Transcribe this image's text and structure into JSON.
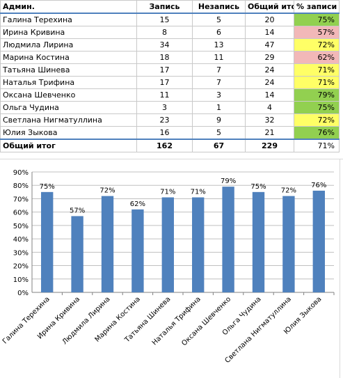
{
  "table": {
    "headers": [
      "Админ.",
      "Запись",
      "Незапись",
      "Общий итог",
      "% записи"
    ],
    "rows": [
      {
        "name": "Галина Терехина",
        "zapis": "15",
        "nezapis": "5",
        "itog": "20",
        "pct": "75%",
        "color": "#92d050"
      },
      {
        "name": "Ирина Кривина",
        "zapis": "8",
        "nezapis": "6",
        "itog": "14",
        "pct": "57%",
        "color": "#f2b8b8"
      },
      {
        "name": "Людмила Лирина",
        "zapis": "34",
        "nezapis": "13",
        "itog": "47",
        "pct": "72%",
        "color": "#ffff66"
      },
      {
        "name": "Марина Костина",
        "zapis": "18",
        "nezapis": "11",
        "itog": "29",
        "pct": "62%",
        "color": "#f2b8b8"
      },
      {
        "name": "Татьяна Шинева",
        "zapis": "17",
        "nezapis": "7",
        "itog": "24",
        "pct": "71%",
        "color": "#ffff66"
      },
      {
        "name": "Наталья Трифина",
        "zapis": "17",
        "nezapis": "7",
        "itog": "24",
        "pct": "71%",
        "color": "#ffff66"
      },
      {
        "name": "Оксана Шевченко",
        "zapis": "11",
        "nezapis": "3",
        "itog": "14",
        "pct": "79%",
        "color": "#92d050"
      },
      {
        "name": "Ольга Чудина",
        "zapis": "3",
        "nezapis": "1",
        "itog": "4",
        "pct": "75%",
        "color": "#92d050"
      },
      {
        "name": "Светлана Нигматуллина",
        "zapis": "23",
        "nezapis": "9",
        "itog": "32",
        "pct": "72%",
        "color": "#ffff66"
      },
      {
        "name": "Юлия Зыкова",
        "zapis": "16",
        "nezapis": "5",
        "itog": "21",
        "pct": "76%",
        "color": "#92d050"
      }
    ],
    "total": {
      "name": "Общий итог",
      "zapis": "162",
      "nezapis": "67",
      "itog": "229",
      "pct": "71%"
    }
  },
  "chart_data": {
    "type": "bar",
    "categories": [
      "Галина Терехина",
      "Ирина Кривина",
      "Людмила Лирина",
      "Марина Костина",
      "Татьяна Шинева",
      "Наталья Трифина",
      "Оксана Шевченко",
      "Ольга Чудина",
      "Светлана Нигматуллина",
      "Юлия Зыкова"
    ],
    "values": [
      75,
      57,
      72,
      62,
      71,
      71,
      79,
      75,
      72,
      76
    ],
    "data_labels": [
      "75%",
      "57%",
      "72%",
      "62%",
      "71%",
      "71%",
      "79%",
      "75%",
      "72%",
      "76%"
    ],
    "ylim": [
      0,
      90
    ],
    "yticks": [
      "0%",
      "10%",
      "20%",
      "30%",
      "40%",
      "50%",
      "60%",
      "70%",
      "80%",
      "90%"
    ],
    "bar_color": "#4f81bd",
    "grid": true,
    "legend": "none"
  }
}
